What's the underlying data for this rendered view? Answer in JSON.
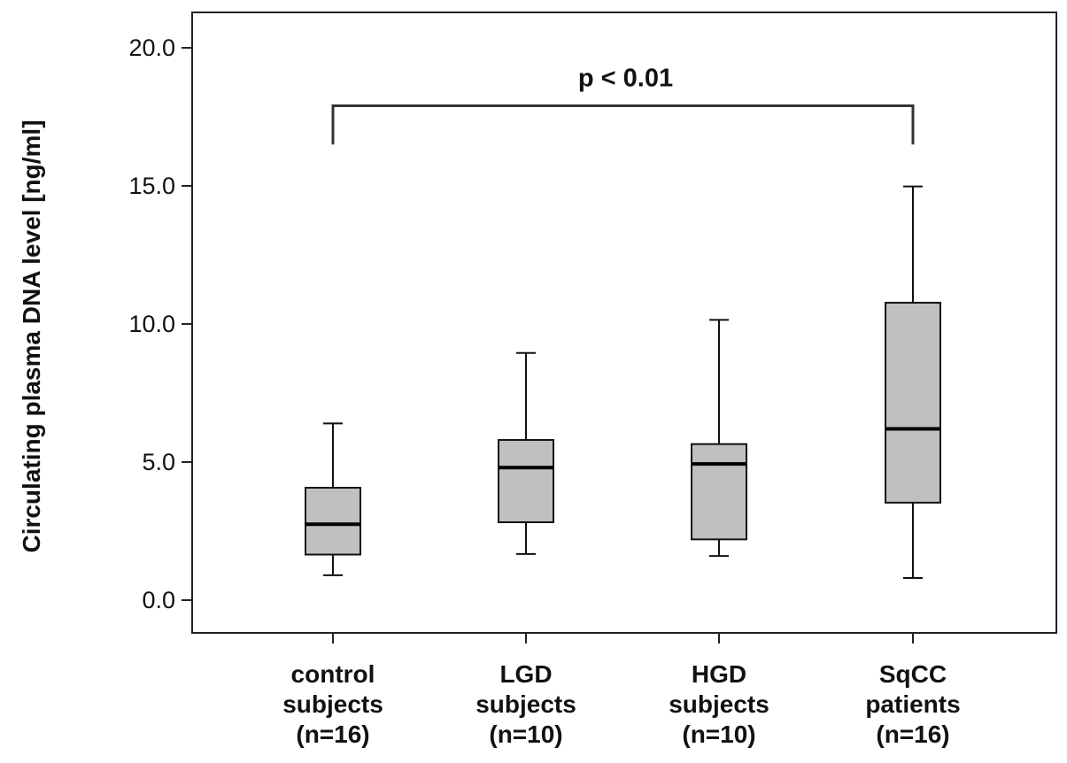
{
  "chart_data": {
    "type": "box",
    "title": "",
    "xlabel": "",
    "ylabel": "Circulating plasma DNA level [ng/ml]",
    "ylim": [
      -1.2,
      21.2
    ],
    "yticks": [
      "0.0",
      "5.0",
      "10.0",
      "15.0",
      "20.0"
    ],
    "ytick_values": [
      0,
      5,
      10,
      15,
      20
    ],
    "grid": false,
    "box_fill": "#c0c0c0",
    "categories": [
      {
        "lines": [
          "control",
          "subjects",
          "(n=16)"
        ],
        "whisker_low": 0.9,
        "q1": 1.65,
        "median": 2.75,
        "q3": 4.07,
        "whisker_high": 6.4
      },
      {
        "lines": [
          "LGD",
          "subjects",
          "(n=10)"
        ],
        "whisker_low": 1.67,
        "q1": 2.82,
        "median": 4.8,
        "q3": 5.8,
        "whisker_high": 8.95
      },
      {
        "lines": [
          "HGD",
          "subjects",
          "(n=10)"
        ],
        "whisker_low": 1.6,
        "q1": 2.2,
        "median": 4.93,
        "q3": 5.65,
        "whisker_high": 10.15
      },
      {
        "lines": [
          "SqCC",
          "patients",
          "(n=16)"
        ],
        "whisker_low": 0.8,
        "q1": 3.53,
        "median": 6.2,
        "q3": 10.77,
        "whisker_high": 14.98
      }
    ],
    "annotation": {
      "text": "p < 0.01",
      "from_category": 0,
      "to_category": 3,
      "bracket_y": 17.9,
      "bracket_drop": 16.5
    }
  }
}
